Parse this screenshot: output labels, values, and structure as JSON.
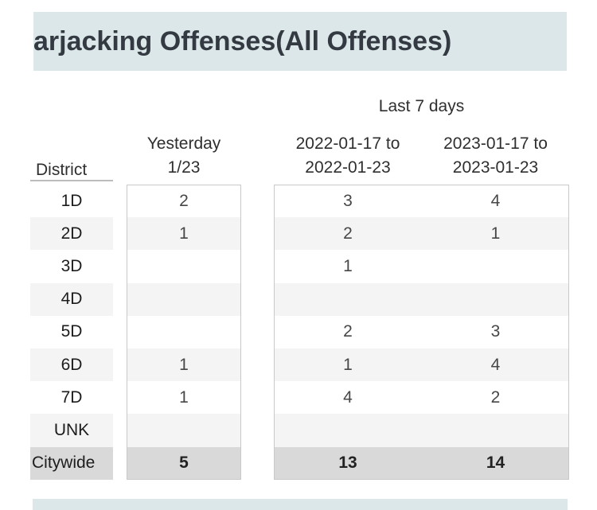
{
  "title": "arjacking Offenses(All Offenses)",
  "colors": {
    "card_bg": "#dce7ea",
    "title_text": "#333a41",
    "stripe_row_bg": "#f4f4f4",
    "total_row_bg": "#d9d9d9",
    "table_border": "#c9c9c9",
    "page_bg": "#ffffff"
  },
  "chart_data": {
    "type": "table",
    "title": "arjacking Offenses(All Offenses)",
    "group_header": "Last 7 days",
    "row_header": "District",
    "columns": [
      "Yesterday 1/23",
      "2022-01-17 to 2022-01-23",
      "2023-01-17 to 2023-01-23"
    ],
    "columns_lines": {
      "yesterday": [
        "Yesterday",
        "1/23"
      ],
      "y2022": [
        "2022-01-17 to",
        "2022-01-23"
      ],
      "y2023": [
        "2023-01-17 to",
        "2023-01-23"
      ]
    },
    "rows": [
      {
        "label": "1D",
        "yesterday": "2",
        "y2022": "3",
        "y2023": "4"
      },
      {
        "label": "2D",
        "yesterday": "1",
        "y2022": "2",
        "y2023": "1"
      },
      {
        "label": "3D",
        "yesterday": "",
        "y2022": "1",
        "y2023": ""
      },
      {
        "label": "4D",
        "yesterday": "",
        "y2022": "",
        "y2023": ""
      },
      {
        "label": "5D",
        "yesterday": "",
        "y2022": "2",
        "y2023": "3"
      },
      {
        "label": "6D",
        "yesterday": "1",
        "y2022": "1",
        "y2023": "4"
      },
      {
        "label": "7D",
        "yesterday": "1",
        "y2022": "4",
        "y2023": "2"
      },
      {
        "label": "UNK",
        "yesterday": "",
        "y2022": "",
        "y2023": ""
      },
      {
        "label": "Citywide",
        "yesterday": "5",
        "y2022": "13",
        "y2023": "14"
      }
    ]
  }
}
